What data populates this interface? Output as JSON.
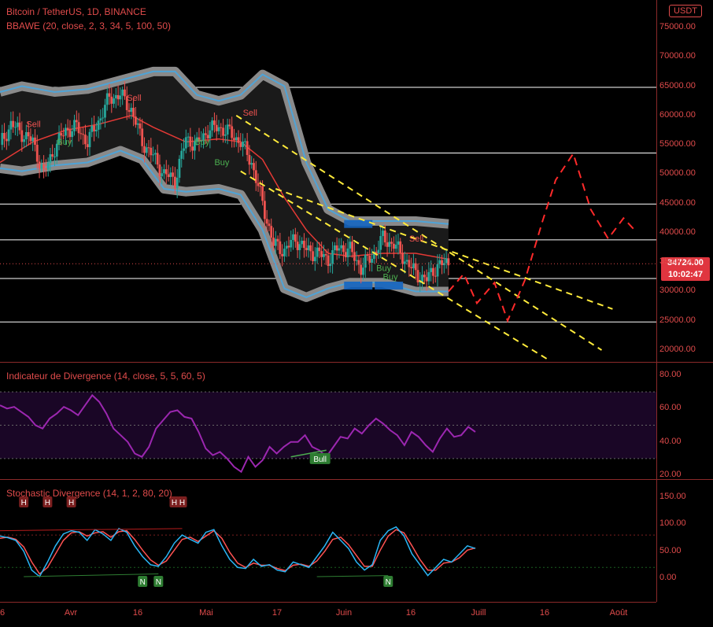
{
  "header": {
    "symbol_line": "Bitcoin / TetherUS, 1D, BINANCE",
    "indicator_line": "BBAWE (20, close, 2, 3, 34, 5, 100, 50)",
    "currency_badge": "USDT",
    "last_price": "34724.00",
    "countdown": "10:02:47"
  },
  "panes": {
    "divergence_title": "Indicateur de Divergence (14, close, 5, 5, 60, 5)",
    "stochastic_title": "Stochastic Divergence (14, 1, 2, 80, 20)"
  },
  "colors": {
    "background": "#000000",
    "accent_red": "#e04b4b",
    "candle_up": "#26a69a",
    "candle_down": "#ef5350",
    "bollinger_fill": "#1a1a1a",
    "bollinger_outer": "#8a8a8a",
    "basis_line": "#e53935",
    "trend_yellow": "#ffeb3b",
    "projection_red": "#ff2a2a",
    "divergence_line": "#9c27b0",
    "stoch_k": "#29b6f6",
    "stoch_d": "#ff5252",
    "signal_green": "#2e7d32",
    "signal_darkred": "#7b1f1f"
  },
  "chart_data": [
    {
      "type": "candlestick",
      "pane": "price",
      "price_axis_ticks": [
        "75000.00",
        "70000.00",
        "65000.00",
        "60000.00",
        "55000.00",
        "50000.00",
        "45000.00",
        "40000.00",
        "35000.00",
        "30000.00",
        "25000.00",
        "20000.00"
      ],
      "ylim": [
        19000,
        77000
      ],
      "x_axis_labels": [
        "6",
        "Avr",
        "16",
        "Mai",
        "17",
        "Juin",
        "16",
        "Juill",
        "16",
        "Août"
      ],
      "horizontal_levels": [
        64800,
        53600,
        44900,
        38800,
        32200,
        24800
      ],
      "close_path": [
        {
          "x": 0,
          "y": 55000
        },
        {
          "x": 5,
          "y": 58500
        },
        {
          "x": 10,
          "y": 57000
        },
        {
          "x": 15,
          "y": 55500
        },
        {
          "x": 20,
          "y": 50000
        },
        {
          "x": 25,
          "y": 54500
        },
        {
          "x": 30,
          "y": 57500
        },
        {
          "x": 35,
          "y": 58000
        },
        {
          "x": 40,
          "y": 55500
        },
        {
          "x": 45,
          "y": 59000
        },
        {
          "x": 50,
          "y": 63000
        },
        {
          "x": 55,
          "y": 63500
        },
        {
          "x": 60,
          "y": 61000
        },
        {
          "x": 65,
          "y": 55500
        },
        {
          "x": 70,
          "y": 53000
        },
        {
          "x": 75,
          "y": 50000
        },
        {
          "x": 80,
          "y": 49000
        },
        {
          "x": 85,
          "y": 56000
        },
        {
          "x": 90,
          "y": 55000
        },
        {
          "x": 95,
          "y": 57500
        },
        {
          "x": 100,
          "y": 58000
        },
        {
          "x": 105,
          "y": 57000
        },
        {
          "x": 110,
          "y": 55500
        },
        {
          "x": 115,
          "y": 52000
        },
        {
          "x": 120,
          "y": 45000
        },
        {
          "x": 125,
          "y": 38000
        },
        {
          "x": 130,
          "y": 37000
        },
        {
          "x": 135,
          "y": 39000
        },
        {
          "x": 140,
          "y": 37000
        },
        {
          "x": 145,
          "y": 36500
        },
        {
          "x": 150,
          "y": 35500
        },
        {
          "x": 155,
          "y": 37500
        },
        {
          "x": 160,
          "y": 37000
        },
        {
          "x": 165,
          "y": 34000
        },
        {
          "x": 170,
          "y": 36000
        },
        {
          "x": 175,
          "y": 39000
        },
        {
          "x": 180,
          "y": 38000
        },
        {
          "x": 185,
          "y": 35500
        },
        {
          "x": 190,
          "y": 33000
        },
        {
          "x": 195,
          "y": 32000
        },
        {
          "x": 200,
          "y": 34500
        },
        {
          "x": 205,
          "y": 34724
        }
      ],
      "bollinger_upper": [
        {
          "x": 0,
          "y": 64000
        },
        {
          "x": 10,
          "y": 65000
        },
        {
          "x": 25,
          "y": 64000
        },
        {
          "x": 40,
          "y": 64500
        },
        {
          "x": 55,
          "y": 66000
        },
        {
          "x": 70,
          "y": 67500
        },
        {
          "x": 80,
          "y": 67500
        },
        {
          "x": 90,
          "y": 63500
        },
        {
          "x": 100,
          "y": 62500
        },
        {
          "x": 110,
          "y": 63500
        },
        {
          "x": 120,
          "y": 67000
        },
        {
          "x": 130,
          "y": 65000
        },
        {
          "x": 140,
          "y": 52000
        },
        {
          "x": 150,
          "y": 44000
        },
        {
          "x": 160,
          "y": 42000
        },
        {
          "x": 175,
          "y": 42000
        },
        {
          "x": 190,
          "y": 42000
        },
        {
          "x": 205,
          "y": 41500
        }
      ],
      "bollinger_lower": [
        {
          "x": 0,
          "y": 51000
        },
        {
          "x": 10,
          "y": 50500
        },
        {
          "x": 25,
          "y": 51500
        },
        {
          "x": 40,
          "y": 52000
        },
        {
          "x": 55,
          "y": 54000
        },
        {
          "x": 65,
          "y": 52500
        },
        {
          "x": 75,
          "y": 47500
        },
        {
          "x": 85,
          "y": 47000
        },
        {
          "x": 100,
          "y": 47500
        },
        {
          "x": 110,
          "y": 46500
        },
        {
          "x": 120,
          "y": 40500
        },
        {
          "x": 130,
          "y": 30500
        },
        {
          "x": 140,
          "y": 29000
        },
        {
          "x": 150,
          "y": 30500
        },
        {
          "x": 160,
          "y": 31500
        },
        {
          "x": 175,
          "y": 31500
        },
        {
          "x": 190,
          "y": 30000
        },
        {
          "x": 205,
          "y": 30000
        }
      ],
      "basis_line": [
        {
          "x": 0,
          "y": 52000
        },
        {
          "x": 15,
          "y": 55500
        },
        {
          "x": 30,
          "y": 57500
        },
        {
          "x": 45,
          "y": 58500
        },
        {
          "x": 60,
          "y": 60000
        },
        {
          "x": 70,
          "y": 58000
        },
        {
          "x": 85,
          "y": 55500
        },
        {
          "x": 100,
          "y": 56000
        },
        {
          "x": 110,
          "y": 55500
        },
        {
          "x": 120,
          "y": 52500
        },
        {
          "x": 130,
          "y": 46000
        },
        {
          "x": 140,
          "y": 40500
        },
        {
          "x": 150,
          "y": 36500
        },
        {
          "x": 160,
          "y": 36000
        },
        {
          "x": 175,
          "y": 36500
        },
        {
          "x": 190,
          "y": 36500
        },
        {
          "x": 205,
          "y": 35500
        }
      ],
      "trend_lines": [
        {
          "from": {
            "x": 108,
            "y": 60000
          },
          "to": {
            "x": 275,
            "y": 20000
          }
        },
        {
          "from": {
            "x": 110,
            "y": 50500
          },
          "to": {
            "x": 250,
            "y": 18500
          }
        },
        {
          "from": {
            "x": 126,
            "y": 47500
          },
          "to": {
            "x": 280,
            "y": 27000
          }
        }
      ],
      "projection": [
        {
          "x": 205,
          "y": 30000
        },
        {
          "x": 212,
          "y": 33000
        },
        {
          "x": 218,
          "y": 28000
        },
        {
          "x": 226,
          "y": 31500
        },
        {
          "x": 232,
          "y": 25000
        },
        {
          "x": 240,
          "y": 32000
        },
        {
          "x": 248,
          "y": 42000
        },
        {
          "x": 254,
          "y": 49000
        },
        {
          "x": 262,
          "y": 53500
        },
        {
          "x": 270,
          "y": 44000
        },
        {
          "x": 278,
          "y": 39000
        },
        {
          "x": 285,
          "y": 42500
        },
        {
          "x": 290,
          "y": 40500
        }
      ],
      "signals": [
        {
          "x": 12,
          "y": 58000,
          "label": "Sell",
          "kind": "sell"
        },
        {
          "x": 26,
          "y": 55000,
          "label": "Buy",
          "kind": "buy"
        },
        {
          "x": 58,
          "y": 62500,
          "label": "Sell",
          "kind": "sell"
        },
        {
          "x": 89,
          "y": 55000,
          "label": "Buy",
          "kind": "buy"
        },
        {
          "x": 98,
          "y": 51500,
          "label": "Buy",
          "kind": "buy"
        },
        {
          "x": 111,
          "y": 60000,
          "label": "Sell",
          "kind": "sell"
        },
        {
          "x": 172,
          "y": 33500,
          "label": "Buy",
          "kind": "buy"
        },
        {
          "x": 175,
          "y": 32000,
          "label": "Buy",
          "kind": "buy"
        },
        {
          "x": 187,
          "y": 38500,
          "label": "Sell",
          "kind": "sell"
        }
      ]
    },
    {
      "type": "line",
      "pane": "divergence",
      "y_ticks": [
        "80.00",
        "60.00",
        "40.00",
        "20.00"
      ],
      "ylim": [
        19,
        85
      ],
      "bands": [
        70,
        50,
        30
      ],
      "series": [
        {
          "values": [
            62,
            60,
            61,
            58,
            55,
            50,
            48,
            54,
            57,
            61,
            59,
            56,
            62,
            68,
            64,
            57,
            48,
            44,
            40,
            33,
            31,
            37,
            48,
            53,
            58,
            59,
            55,
            54,
            46,
            36,
            32,
            34,
            30,
            25,
            22,
            31,
            25,
            29,
            37,
            33,
            37,
            40,
            40,
            44,
            37,
            35,
            31,
            37,
            43,
            42,
            48,
            45,
            50,
            54,
            51,
            47,
            44,
            38,
            46,
            43,
            38,
            34,
            42,
            48,
            43,
            44,
            49,
            46
          ]
        }
      ],
      "annotations": [
        {
          "index": 45,
          "label": "Bull"
        }
      ]
    },
    {
      "type": "line",
      "pane": "stochastic",
      "y_ticks": [
        "150.00",
        "100.00",
        "50.00",
        "0.00"
      ],
      "ylim": [
        -25,
        165
      ],
      "bands": [
        80,
        20
      ],
      "series": [
        {
          "values": [
            78,
            75,
            70,
            50,
            15,
            3,
            30,
            60,
            82,
            88,
            85,
            70,
            90,
            82,
            70,
            92,
            85,
            60,
            40,
            25,
            22,
            40,
            65,
            80,
            72,
            65,
            85,
            90,
            60,
            35,
            20,
            18,
            35,
            22,
            25,
            15,
            12,
            30,
            25,
            20,
            40,
            60,
            85,
            70,
            55,
            30,
            15,
            25,
            70,
            88,
            95,
            78,
            45,
            25,
            5,
            20,
            35,
            30,
            45,
            60,
            55
          ]
        },
        {
          "values": [
            74,
            76,
            72,
            58,
            30,
            8,
            20,
            45,
            70,
            84,
            86,
            78,
            84,
            86,
            76,
            86,
            88,
            72,
            52,
            34,
            24,
            32,
            52,
            72,
            76,
            68,
            78,
            88,
            74,
            48,
            28,
            20,
            28,
            24,
            24,
            18,
            14,
            24,
            26,
            22,
            32,
            50,
            72,
            76,
            62,
            42,
            22,
            22,
            52,
            78,
            90,
            84,
            60,
            35,
            15,
            15,
            28,
            30,
            38,
            52,
            56
          ]
        }
      ],
      "annotations": [
        {
          "index": 3,
          "label": "H",
          "position": "bottom"
        },
        {
          "index": 6,
          "label": "H",
          "position": "top"
        },
        {
          "index": 9,
          "label": "H",
          "position": "top"
        },
        {
          "index": 22,
          "label": "H",
          "position": "top"
        },
        {
          "index": 23,
          "label": "H",
          "position": "top"
        },
        {
          "index": 18,
          "label": "N",
          "position": "bottom"
        },
        {
          "index": 20,
          "label": "N",
          "position": "bottom"
        },
        {
          "index": 49,
          "label": "N",
          "position": "bottom"
        }
      ]
    }
  ]
}
